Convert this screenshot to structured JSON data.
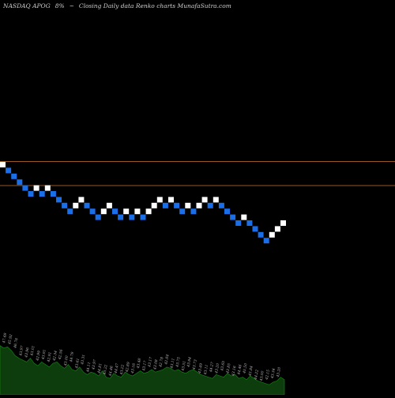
{
  "header": {
    "symbol": "NASDAQ APOG",
    "change": "8%",
    "arrow": "~",
    "caption": "Closing Daily data  Renko  charts MunafaSutra.com"
  },
  "colors": {
    "background": "#000000",
    "brick_up": "#ffffff",
    "brick_down": "#1a6fe8",
    "ref_line": "#c87533",
    "volume_fill": "#0d3d0d",
    "volume_bar": "#1a8a1a",
    "volume_label": "#bbbbbb"
  },
  "chart_data": {
    "type": "renko",
    "y_axis": "price",
    "reference_lines": [
      0.66,
      0.5
    ],
    "bricks": [
      {
        "level": 0,
        "dir": "up"
      },
      {
        "level": -1,
        "dir": "down"
      },
      {
        "level": -2,
        "dir": "down"
      },
      {
        "level": -3,
        "dir": "down"
      },
      {
        "level": -4,
        "dir": "down"
      },
      {
        "level": -5,
        "dir": "down"
      },
      {
        "level": -4,
        "dir": "up"
      },
      {
        "level": -5,
        "dir": "down"
      },
      {
        "level": -4,
        "dir": "up"
      },
      {
        "level": -5,
        "dir": "down"
      },
      {
        "level": -6,
        "dir": "down"
      },
      {
        "level": -7,
        "dir": "down"
      },
      {
        "level": -8,
        "dir": "down"
      },
      {
        "level": -7,
        "dir": "up"
      },
      {
        "level": -6,
        "dir": "up"
      },
      {
        "level": -7,
        "dir": "down"
      },
      {
        "level": -8,
        "dir": "down"
      },
      {
        "level": -9,
        "dir": "down"
      },
      {
        "level": -8,
        "dir": "up"
      },
      {
        "level": -7,
        "dir": "up"
      },
      {
        "level": -8,
        "dir": "down"
      },
      {
        "level": -9,
        "dir": "down"
      },
      {
        "level": -8,
        "dir": "up"
      },
      {
        "level": -9,
        "dir": "down"
      },
      {
        "level": -8,
        "dir": "up"
      },
      {
        "level": -9,
        "dir": "down"
      },
      {
        "level": -8,
        "dir": "up"
      },
      {
        "level": -7,
        "dir": "up"
      },
      {
        "level": -6,
        "dir": "up"
      },
      {
        "level": -7,
        "dir": "down"
      },
      {
        "level": -6,
        "dir": "up"
      },
      {
        "level": -7,
        "dir": "down"
      },
      {
        "level": -8,
        "dir": "down"
      },
      {
        "level": -7,
        "dir": "up"
      },
      {
        "level": -8,
        "dir": "down"
      },
      {
        "level": -7,
        "dir": "up"
      },
      {
        "level": -6,
        "dir": "up"
      },
      {
        "level": -7,
        "dir": "down"
      },
      {
        "level": -6,
        "dir": "up"
      },
      {
        "level": -7,
        "dir": "down"
      },
      {
        "level": -8,
        "dir": "down"
      },
      {
        "level": -9,
        "dir": "down"
      },
      {
        "level": -10,
        "dir": "down"
      },
      {
        "level": -9,
        "dir": "up"
      },
      {
        "level": -10,
        "dir": "down"
      },
      {
        "level": -11,
        "dir": "down"
      },
      {
        "level": -12,
        "dir": "down"
      },
      {
        "level": -13,
        "dir": "down"
      },
      {
        "level": -12,
        "dir": "up"
      },
      {
        "level": -11,
        "dir": "up"
      },
      {
        "level": -10,
        "dir": "up"
      }
    ],
    "volume": [
      0.78,
      0.74,
      0.76,
      0.7,
      0.62,
      0.58,
      0.55,
      0.52,
      0.58,
      0.5,
      0.46,
      0.52,
      0.48,
      0.44,
      0.5,
      0.52,
      0.46,
      0.42,
      0.48,
      0.4,
      0.38,
      0.44,
      0.36,
      0.32,
      0.36,
      0.34,
      0.3,
      0.38,
      0.28,
      0.26,
      0.34,
      0.3,
      0.28,
      0.36,
      0.32,
      0.3,
      0.34,
      0.38,
      0.34,
      0.36,
      0.4,
      0.36,
      0.38,
      0.4,
      0.44,
      0.42,
      0.38,
      0.4,
      0.36,
      0.34,
      0.38,
      0.4,
      0.36,
      0.32,
      0.3,
      0.28,
      0.26,
      0.32,
      0.3,
      0.28,
      0.34,
      0.3,
      0.32,
      0.26,
      0.28,
      0.24,
      0.3,
      0.26,
      0.22,
      0.2,
      0.18,
      0.16,
      0.2,
      0.22,
      0.28,
      0.24
    ],
    "volume_labels": [
      "47.69",
      "45.92",
      "46.76",
      "43.97",
      "43.96",
      "43.01",
      "42.99",
      "43.91",
      "42.91",
      "42.34",
      "42.56",
      "43.00",
      "44.79",
      "43.61",
      "43.31",
      "44.11",
      "43.97",
      "44.81",
      "45.22",
      "44.46",
      "44.47",
      "43.22",
      "42.89",
      "43.16",
      "43.48",
      "43.17",
      "43.17",
      "43.08",
      "42.78",
      "42.84",
      "43.11",
      "43.75",
      "43.51",
      "43.94",
      "43.73",
      "43.49",
      "43.11",
      "44.27",
      "43.20",
      "43.65",
      "43.85",
      "43.16",
      "44.46",
      "45.50",
      "45.84",
      "44.22",
      "43.00",
      "42.15",
      "43.34",
      "43.20"
    ]
  }
}
